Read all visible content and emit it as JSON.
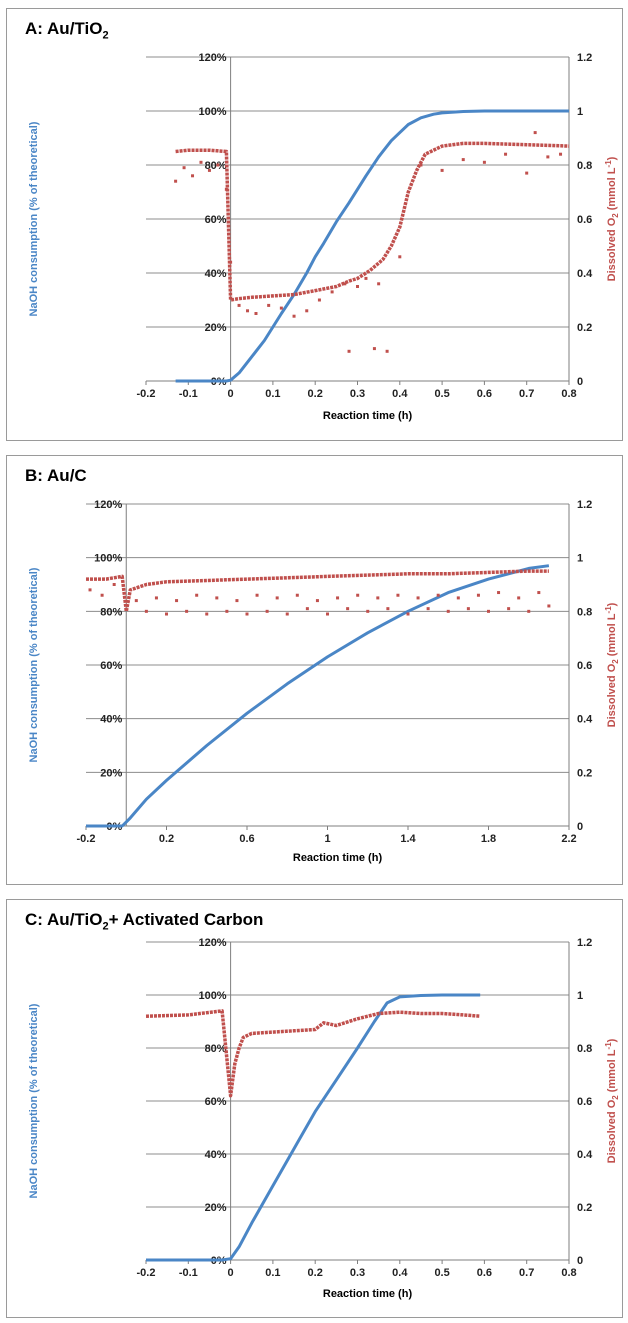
{
  "chart_data": [
    {
      "type": "scatter",
      "title_main": "A: Au/TiO",
      "title_sub": "2",
      "title_tail": "",
      "xlabel": "Reaction time (h)",
      "ylabel": "NaOH consumption (% of theoretical)",
      "y2label_main": "Dissolved O",
      "y2label_sub": "2",
      "y2label_tail": " (mmol L",
      "y2label_sup": "-1",
      "y2label_close": ")",
      "xlim": [
        -0.2,
        0.8
      ],
      "xticks": [
        -0.2,
        -0.1,
        0,
        0.1,
        0.2,
        0.3,
        0.4,
        0.5,
        0.6,
        0.7,
        0.8
      ],
      "xtick_labels": [
        "-0.2",
        "-0.1",
        "0",
        "0.1",
        "0.2",
        "0.3",
        "0.4",
        "0.5",
        "0.6",
        "0.7",
        "0.8"
      ],
      "ylim": [
        0,
        120
      ],
      "yticks": [
        0,
        20,
        40,
        60,
        80,
        100,
        120
      ],
      "ytick_labels": [
        "0%",
        "20%",
        "40%",
        "60%",
        "80%",
        "100%",
        "120%"
      ],
      "y2lim": [
        0,
        1.2
      ],
      "y2ticks": [
        0,
        0.2,
        0.4,
        0.6,
        0.8,
        1,
        1.2
      ],
      "y2tick_labels": [
        "0",
        "0.2",
        "0.4",
        "0.6",
        "0.8",
        "1",
        "1.2"
      ],
      "grid": true,
      "series": [
        {
          "axis": "left",
          "color": "#4a86c6",
          "x": [
            -0.13,
            -0.1,
            -0.05,
            -0.01,
            0,
            0.02,
            0.05,
            0.08,
            0.1,
            0.12,
            0.15,
            0.18,
            0.2,
            0.22,
            0.25,
            0.28,
            0.3,
            0.32,
            0.35,
            0.38,
            0.4,
            0.42,
            0.45,
            0.48,
            0.5,
            0.55,
            0.6,
            0.7,
            0.8
          ],
          "y": [
            0,
            0,
            0,
            0,
            0.3,
            3,
            9,
            15,
            20,
            25,
            32,
            40,
            46,
            51,
            59,
            66,
            71,
            76,
            83,
            89,
            92,
            95,
            97.5,
            98.8,
            99.3,
            99.8,
            100,
            100,
            100
          ]
        },
        {
          "axis": "right",
          "color": "#c0504d",
          "x": [
            -0.13,
            -0.1,
            -0.05,
            -0.01,
            0,
            0.02,
            0.05,
            0.1,
            0.15,
            0.2,
            0.25,
            0.28,
            0.3,
            0.33,
            0.36,
            0.38,
            0.4,
            0.42,
            0.44,
            0.46,
            0.5,
            0.55,
            0.6,
            0.7,
            0.8
          ],
          "y": [
            0.85,
            0.855,
            0.855,
            0.85,
            0.3,
            0.305,
            0.31,
            0.315,
            0.32,
            0.335,
            0.35,
            0.37,
            0.38,
            0.41,
            0.45,
            0.5,
            0.57,
            0.7,
            0.78,
            0.84,
            0.87,
            0.88,
            0.88,
            0.875,
            0.87
          ]
        },
        {
          "axis": "right",
          "color": "#c0504d",
          "scatter": true,
          "x": [
            -0.13,
            -0.11,
            -0.09,
            -0.07,
            -0.05,
            -0.03,
            -0.01,
            0,
            0.02,
            0.04,
            0.06,
            0.09,
            0.12,
            0.15,
            0.18,
            0.21,
            0.24,
            0.27,
            0.28,
            0.3,
            0.32,
            0.34,
            0.35,
            0.37,
            0.4,
            0.45,
            0.5,
            0.55,
            0.6,
            0.65,
            0.7,
            0.72,
            0.75,
            0.78
          ],
          "y": [
            0.74,
            0.79,
            0.76,
            0.81,
            0.78,
            0.8,
            0.71,
            0.44,
            0.28,
            0.26,
            0.25,
            0.28,
            0.27,
            0.24,
            0.26,
            0.3,
            0.33,
            0.36,
            0.11,
            0.35,
            0.38,
            0.12,
            0.36,
            0.11,
            0.46,
            0.8,
            0.78,
            0.82,
            0.81,
            0.84,
            0.77,
            0.92,
            0.83,
            0.84
          ]
        }
      ]
    },
    {
      "type": "scatter",
      "title_main": "B: Au/C",
      "title_sub": "",
      "title_tail": "",
      "xlabel": "Reaction time (h)",
      "ylabel": "NaOH consumption (% of theoretical)",
      "y2label_main": "Dissolved O",
      "y2label_sub": "2",
      "y2label_tail": " (mmol L",
      "y2label_sup": "-1",
      "y2label_close": ")",
      "xlim": [
        -0.2,
        2.2
      ],
      "xticks": [
        -0.2,
        0.2,
        0.6,
        1,
        1.4,
        1.8,
        2.2
      ],
      "xtick_labels": [
        "-0.2",
        "0.2",
        "0.6",
        "1",
        "1.4",
        "1.8",
        "2.2"
      ],
      "ylim": [
        0,
        120
      ],
      "yticks": [
        0,
        20,
        40,
        60,
        80,
        100,
        120
      ],
      "ytick_labels": [
        "0%",
        "20%",
        "40%",
        "60%",
        "80%",
        "100%",
        "120%"
      ],
      "y2lim": [
        0,
        1.2
      ],
      "y2ticks": [
        0,
        0.2,
        0.4,
        0.6,
        0.8,
        1,
        1.2
      ],
      "y2tick_labels": [
        "0",
        "0.2",
        "0.4",
        "0.6",
        "0.8",
        "1",
        "1.2"
      ],
      "grid": true,
      "series": [
        {
          "axis": "left",
          "color": "#4a86c6",
          "x": [
            -0.2,
            -0.1,
            -0.02,
            0.02,
            0.1,
            0.2,
            0.4,
            0.6,
            0.8,
            1.0,
            1.2,
            1.4,
            1.6,
            1.8,
            2.0,
            2.1
          ],
          "y": [
            0,
            0,
            0,
            3,
            10,
            17,
            30,
            42,
            53,
            63,
            72,
            80,
            87,
            92,
            96,
            97
          ]
        },
        {
          "axis": "right",
          "color": "#c0504d",
          "x": [
            -0.2,
            -0.1,
            -0.02,
            0,
            0.02,
            0.1,
            0.2,
            0.4,
            0.6,
            0.8,
            1.0,
            1.2,
            1.4,
            1.6,
            1.8,
            2.0,
            2.1
          ],
          "y": [
            0.92,
            0.92,
            0.93,
            0.8,
            0.88,
            0.9,
            0.91,
            0.915,
            0.92,
            0.925,
            0.93,
            0.935,
            0.94,
            0.94,
            0.945,
            0.95,
            0.95
          ]
        },
        {
          "axis": "right",
          "color": "#c0504d",
          "scatter": true,
          "x": [
            -0.18,
            -0.12,
            -0.06,
            0.05,
            0.1,
            0.15,
            0.2,
            0.25,
            0.3,
            0.35,
            0.4,
            0.45,
            0.5,
            0.55,
            0.6,
            0.65,
            0.7,
            0.75,
            0.8,
            0.85,
            0.9,
            0.95,
            1.0,
            1.05,
            1.1,
            1.15,
            1.2,
            1.25,
            1.3,
            1.35,
            1.4,
            1.45,
            1.5,
            1.55,
            1.6,
            1.65,
            1.7,
            1.75,
            1.8,
            1.85,
            1.9,
            1.95,
            2.0,
            2.05,
            2.1
          ],
          "y": [
            0.88,
            0.86,
            0.9,
            0.84,
            0.8,
            0.85,
            0.79,
            0.84,
            0.8,
            0.86,
            0.79,
            0.85,
            0.8,
            0.84,
            0.79,
            0.86,
            0.8,
            0.85,
            0.79,
            0.86,
            0.81,
            0.84,
            0.79,
            0.85,
            0.81,
            0.86,
            0.8,
            0.85,
            0.81,
            0.86,
            0.79,
            0.85,
            0.81,
            0.86,
            0.8,
            0.85,
            0.81,
            0.86,
            0.8,
            0.87,
            0.81,
            0.85,
            0.8,
            0.87,
            0.82
          ]
        }
      ]
    },
    {
      "type": "scatter",
      "title_main": "C: Au/TiO",
      "title_sub": "2",
      "title_tail": "+  Activated Carbon",
      "xlabel": "Reaction time (h)",
      "ylabel": "NaOH consumption (% of theoretical)",
      "y2label_main": "Dissolved O",
      "y2label_sub": "2",
      "y2label_tail": " (mmol L",
      "y2label_sup": "-1",
      "y2label_close": ")",
      "xlim": [
        -0.2,
        0.8
      ],
      "xticks": [
        -0.2,
        -0.1,
        0,
        0.1,
        0.2,
        0.3,
        0.4,
        0.5,
        0.6,
        0.7,
        0.8
      ],
      "xtick_labels": [
        "-0.2",
        "-0.1",
        "0",
        "0.1",
        "0.2",
        "0.3",
        "0.4",
        "0.5",
        "0.6",
        "0.7",
        "0.8"
      ],
      "ylim": [
        0,
        120
      ],
      "yticks": [
        0,
        20,
        40,
        60,
        80,
        100,
        120
      ],
      "ytick_labels": [
        "0%",
        "20%",
        "40%",
        "60%",
        "80%",
        "100%",
        "120%"
      ],
      "y2lim": [
        0,
        1.2
      ],
      "y2ticks": [
        0,
        0.2,
        0.4,
        0.6,
        0.8,
        1,
        1.2
      ],
      "y2tick_labels": [
        "0",
        "0.2",
        "0.4",
        "0.6",
        "0.8",
        "1",
        "1.2"
      ],
      "grid": true,
      "series": [
        {
          "axis": "left",
          "color": "#4a86c6",
          "x": [
            -0.2,
            -0.1,
            -0.02,
            0,
            0.02,
            0.05,
            0.1,
            0.15,
            0.2,
            0.25,
            0.3,
            0.34,
            0.37,
            0.4,
            0.45,
            0.5,
            0.59
          ],
          "y": [
            0,
            0,
            0,
            0.5,
            5,
            14,
            28,
            42,
            56,
            68,
            80,
            90,
            97,
            99.3,
            99.8,
            100,
            100
          ]
        },
        {
          "axis": "right",
          "color": "#c0504d",
          "x": [
            -0.2,
            -0.1,
            -0.02,
            0,
            0.01,
            0.02,
            0.03,
            0.05,
            0.1,
            0.15,
            0.2,
            0.22,
            0.25,
            0.3,
            0.35,
            0.4,
            0.45,
            0.5,
            0.55,
            0.59
          ],
          "y": [
            0.92,
            0.925,
            0.94,
            0.62,
            0.74,
            0.8,
            0.84,
            0.855,
            0.86,
            0.865,
            0.87,
            0.895,
            0.885,
            0.91,
            0.93,
            0.935,
            0.93,
            0.93,
            0.925,
            0.92
          ]
        }
      ]
    }
  ]
}
